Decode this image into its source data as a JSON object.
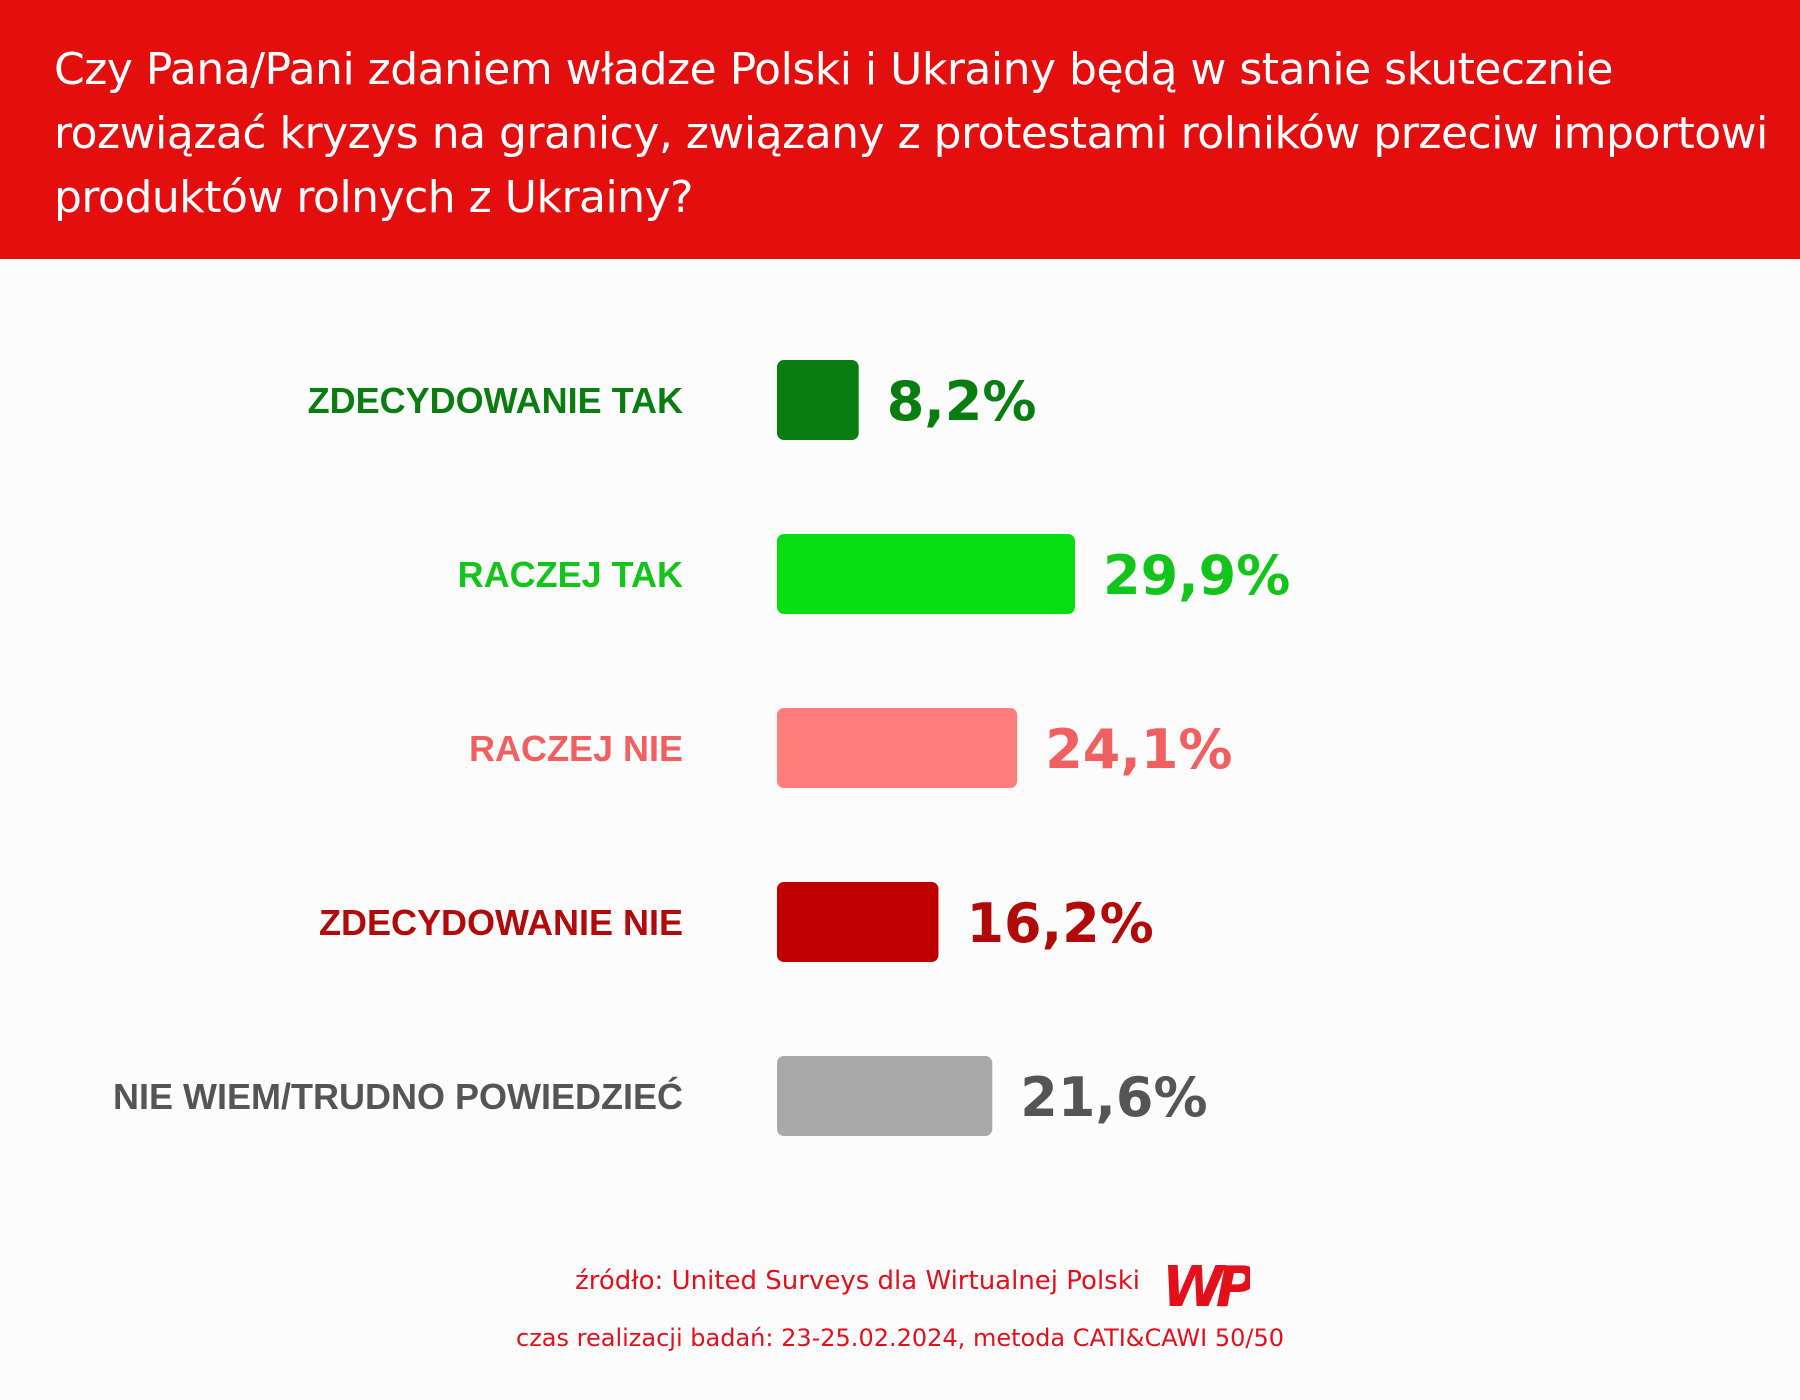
{
  "header": {
    "title": "Czy Pana/Pani zdaniem władze Polski i Ukrainy będą w stanie skutecznie rozwiązać kryzys na granicy, związany z protestami rolników przeciw importowi produktów rolnych z Ukrainy?"
  },
  "chart_data": {
    "type": "bar",
    "orientation": "horizontal",
    "title": "Czy Pana/Pani zdaniem władze Polski i Ukrainy będą w stanie skutecznie rozwiązać kryzys na granicy, związany z protestami rolników przeciw importowi produktów rolnych z Ukrainy?",
    "categories": [
      "ZDECYDOWANIE TAK",
      "RACZEJ TAK",
      "RACZEJ NIE",
      "ZDECYDOWANIE NIE",
      "NIE WIEM/TRUDNO POWIEDZIEĆ"
    ],
    "values": [
      8.2,
      29.9,
      24.1,
      16.2,
      21.6
    ],
    "value_labels": [
      "8,2%",
      "29,9%",
      "24,1%",
      "16,2%",
      "21,6%"
    ],
    "colors": [
      "#0a7d10",
      "#08dd12",
      "#ff7d7d",
      "#c00000",
      "#a8a8a8"
    ],
    "label_colors": [
      "#0a7d10",
      "#13c51b",
      "#f06060",
      "#b00a0a",
      "#555555"
    ],
    "grid": false,
    "legend": "none"
  },
  "footer": {
    "source": "źródło: United Surveys dla Wirtualnej Polski",
    "dates": "czas realizacji badań: 23-25.02.2024, metoda CATI&CAWI 50/50",
    "logo_text": "WP",
    "logo_color": "#e3101c"
  }
}
